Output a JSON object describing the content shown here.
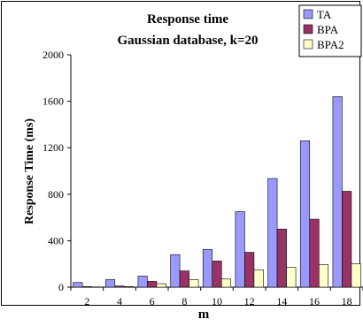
{
  "chart_data": {
    "type": "bar",
    "title": "Response time",
    "subtitle": "Gaussian database, k=20",
    "xlabel": "m",
    "ylabel": "Response Time (ms)",
    "ylim": [
      0,
      2000
    ],
    "yticks": [
      "0",
      "400",
      "800",
      "1200",
      "1600",
      "2000"
    ],
    "grid": false,
    "legend_position": "top-right",
    "categories": [
      "2",
      "4",
      "6",
      "8",
      "10",
      "12",
      "14",
      "16",
      "18"
    ],
    "series": [
      {
        "name": "TA",
        "color": "#9999ff",
        "values": [
          40,
          65,
          95,
          280,
          325,
          650,
          935,
          1260,
          1640
        ]
      },
      {
        "name": "BPA",
        "color": "#993366",
        "values": [
          5,
          10,
          50,
          140,
          225,
          300,
          500,
          585,
          825
        ]
      },
      {
        "name": "BPA2",
        "color": "#ffffcc",
        "values": [
          2,
          5,
          30,
          65,
          70,
          150,
          170,
          195,
          200
        ]
      }
    ]
  }
}
